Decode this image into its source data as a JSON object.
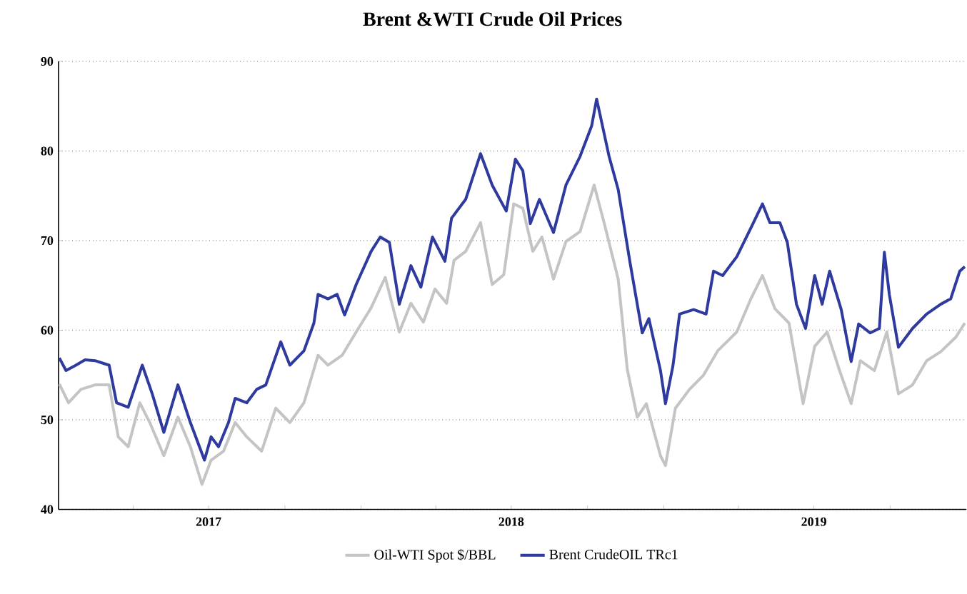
{
  "chart_data": {
    "type": "line",
    "title": "Brent &WTI Crude Oil Prices",
    "xlim": [
      "2017-01-01",
      "2020-01-01"
    ],
    "xticks": [
      {
        "value": "2017-01-01",
        "label": null
      },
      {
        "value": "2017-04-01",
        "label": null
      },
      {
        "value": "2017-07-01",
        "label": "2017"
      },
      {
        "value": "2017-10-01",
        "label": null
      },
      {
        "value": "2018-01-01",
        "label": null
      },
      {
        "value": "2018-04-01",
        "label": null
      },
      {
        "value": "2018-07-01",
        "label": "2018"
      },
      {
        "value": "2018-10-01",
        "label": null
      },
      {
        "value": "2019-01-01",
        "label": null
      },
      {
        "value": "2019-04-01",
        "label": null
      },
      {
        "value": "2019-07-01",
        "label": "2019"
      },
      {
        "value": "2019-10-01",
        "label": null
      }
    ],
    "ylim": [
      40,
      90
    ],
    "yticks": [
      40,
      50,
      60,
      70,
      80,
      90
    ],
    "grid": "y",
    "legend": "bottom",
    "marker": "none",
    "line_style": "solid",
    "series": [
      {
        "name": "Oil-WTI Spot $/BBL",
        "color": "#c4c4c4",
        "x": [
          "2017-01-02",
          "2017-01-13",
          "2017-01-28",
          "2017-02-14",
          "2017-03-03",
          "2017-03-14",
          "2017-03-26",
          "2017-04-09",
          "2017-04-21",
          "2017-05-08",
          "2017-05-25",
          "2017-06-09",
          "2017-06-23",
          "2017-07-04",
          "2017-07-19",
          "2017-08-02",
          "2017-08-16",
          "2017-09-03",
          "2017-09-20",
          "2017-10-07",
          "2017-10-24",
          "2017-11-10",
          "2017-11-22",
          "2017-12-09",
          "2017-12-26",
          "2018-01-13",
          "2018-01-30",
          "2018-02-16",
          "2018-03-02",
          "2018-03-17",
          "2018-03-31",
          "2018-04-14",
          "2018-04-23",
          "2018-05-07",
          "2018-05-25",
          "2018-06-08",
          "2018-06-22",
          "2018-07-04",
          "2018-07-15",
          "2018-07-27",
          "2018-08-07",
          "2018-08-21",
          "2018-09-05",
          "2018-09-22",
          "2018-10-09",
          "2018-10-21",
          "2018-11-07",
          "2018-11-18",
          "2018-11-30",
          "2018-12-11",
          "2018-12-28",
          "2019-01-03",
          "2019-01-15",
          "2019-02-01",
          "2019-02-18",
          "2019-03-07",
          "2019-03-30",
          "2019-04-16",
          "2019-04-30",
          "2019-05-15",
          "2019-06-01",
          "2019-06-18",
          "2019-07-02",
          "2019-07-17",
          "2019-08-01",
          "2019-08-15",
          "2019-08-26",
          "2019-09-12",
          "2019-09-27",
          "2019-10-11",
          "2019-10-28",
          "2019-11-14",
          "2019-12-01",
          "2019-12-19",
          "2019-12-30"
        ],
        "values": [
          54,
          51.9,
          53.4,
          53.9,
          53.9,
          48.1,
          47,
          51.9,
          49.7,
          46,
          50.3,
          47,
          42.8,
          45.5,
          46.5,
          49.7,
          48.1,
          46.5,
          51.3,
          49.7,
          51.9,
          57.2,
          56.1,
          57.2,
          59.8,
          62.5,
          65.9,
          59.8,
          63,
          60.9,
          64.6,
          63,
          67.8,
          68.8,
          72,
          65.1,
          66.2,
          74.1,
          73.6,
          68.8,
          70.4,
          65.7,
          69.9,
          71,
          76.2,
          72,
          65.7,
          55.6,
          50.3,
          51.8,
          46,
          44.9,
          51.3,
          53.4,
          55,
          57.7,
          59.8,
          63.5,
          66.1,
          62.4,
          60.8,
          51.8,
          58.2,
          59.8,
          55.5,
          51.8,
          56.6,
          55.5,
          59.8,
          52.9,
          53.9,
          56.6,
          57.6,
          59.2,
          60.8
        ]
      },
      {
        "name": "Brent CrudeOIL TRc1",
        "color": "#2e3a9e",
        "x": [
          "2017-01-02",
          "2017-01-10",
          "2017-01-22",
          "2017-02-02",
          "2017-02-14",
          "2017-03-03",
          "2017-03-12",
          "2017-03-26",
          "2017-04-12",
          "2017-04-24",
          "2017-05-08",
          "2017-05-25",
          "2017-06-09",
          "2017-06-26",
          "2017-07-04",
          "2017-07-13",
          "2017-07-25",
          "2017-08-02",
          "2017-08-16",
          "2017-08-28",
          "2017-09-08",
          "2017-09-26",
          "2017-10-07",
          "2017-10-24",
          "2017-11-05",
          "2017-11-10",
          "2017-11-22",
          "2017-12-03",
          "2017-12-12",
          "2017-12-26",
          "2018-01-13",
          "2018-01-24",
          "2018-02-04",
          "2018-02-16",
          "2018-03-02",
          "2018-03-14",
          "2018-03-28",
          "2018-04-12",
          "2018-04-20",
          "2018-05-07",
          "2018-05-25",
          "2018-06-08",
          "2018-06-25",
          "2018-07-06",
          "2018-07-15",
          "2018-07-24",
          "2018-08-04",
          "2018-08-21",
          "2018-09-05",
          "2018-09-22",
          "2018-10-06",
          "2018-10-12",
          "2018-10-27",
          "2018-11-07",
          "2018-11-21",
          "2018-12-06",
          "2018-12-14",
          "2018-12-28",
          "2019-01-03",
          "2019-01-12",
          "2019-01-20",
          "2019-02-06",
          "2019-02-21",
          "2019-03-02",
          "2019-03-13",
          "2019-03-30",
          "2019-04-16",
          "2019-04-30",
          "2019-05-09",
          "2019-05-21",
          "2019-05-30",
          "2019-06-10",
          "2019-06-21",
          "2019-07-02",
          "2019-07-11",
          "2019-07-20",
          "2019-08-03",
          "2019-08-15",
          "2019-08-24",
          "2019-09-07",
          "2019-09-18",
          "2019-09-24",
          "2019-09-30",
          "2019-10-11",
          "2019-10-28",
          "2019-11-14",
          "2019-12-01",
          "2019-12-13",
          "2019-12-24",
          "2019-12-30"
        ],
        "values": [
          56.9,
          55.5,
          56.1,
          56.7,
          56.6,
          56.1,
          51.9,
          51.4,
          56.1,
          52.9,
          48.6,
          53.9,
          49.7,
          45.5,
          48.1,
          47,
          49.7,
          52.4,
          51.9,
          53.4,
          53.9,
          58.7,
          56.1,
          57.7,
          60.8,
          64,
          63.5,
          64,
          61.7,
          65.1,
          68.8,
          70.4,
          69.8,
          62.9,
          67.2,
          64.8,
          70.4,
          67.7,
          72.5,
          74.6,
          79.7,
          76.2,
          73.3,
          79.1,
          77.8,
          71.9,
          74.6,
          70.9,
          76.2,
          79.4,
          82.8,
          85.8,
          79.4,
          75.7,
          67.7,
          59.7,
          61.3,
          55.5,
          51.8,
          56,
          61.8,
          62.3,
          61.8,
          66.6,
          66.1,
          68.2,
          71.4,
          74.1,
          72,
          72,
          69.8,
          62.9,
          60.2,
          66.1,
          62.9,
          66.6,
          62.3,
          56.5,
          60.7,
          59.7,
          60.2,
          68.7,
          64,
          58.1,
          60.2,
          61.8,
          62.9,
          63.5,
          66.6,
          67.1
        ]
      }
    ]
  }
}
